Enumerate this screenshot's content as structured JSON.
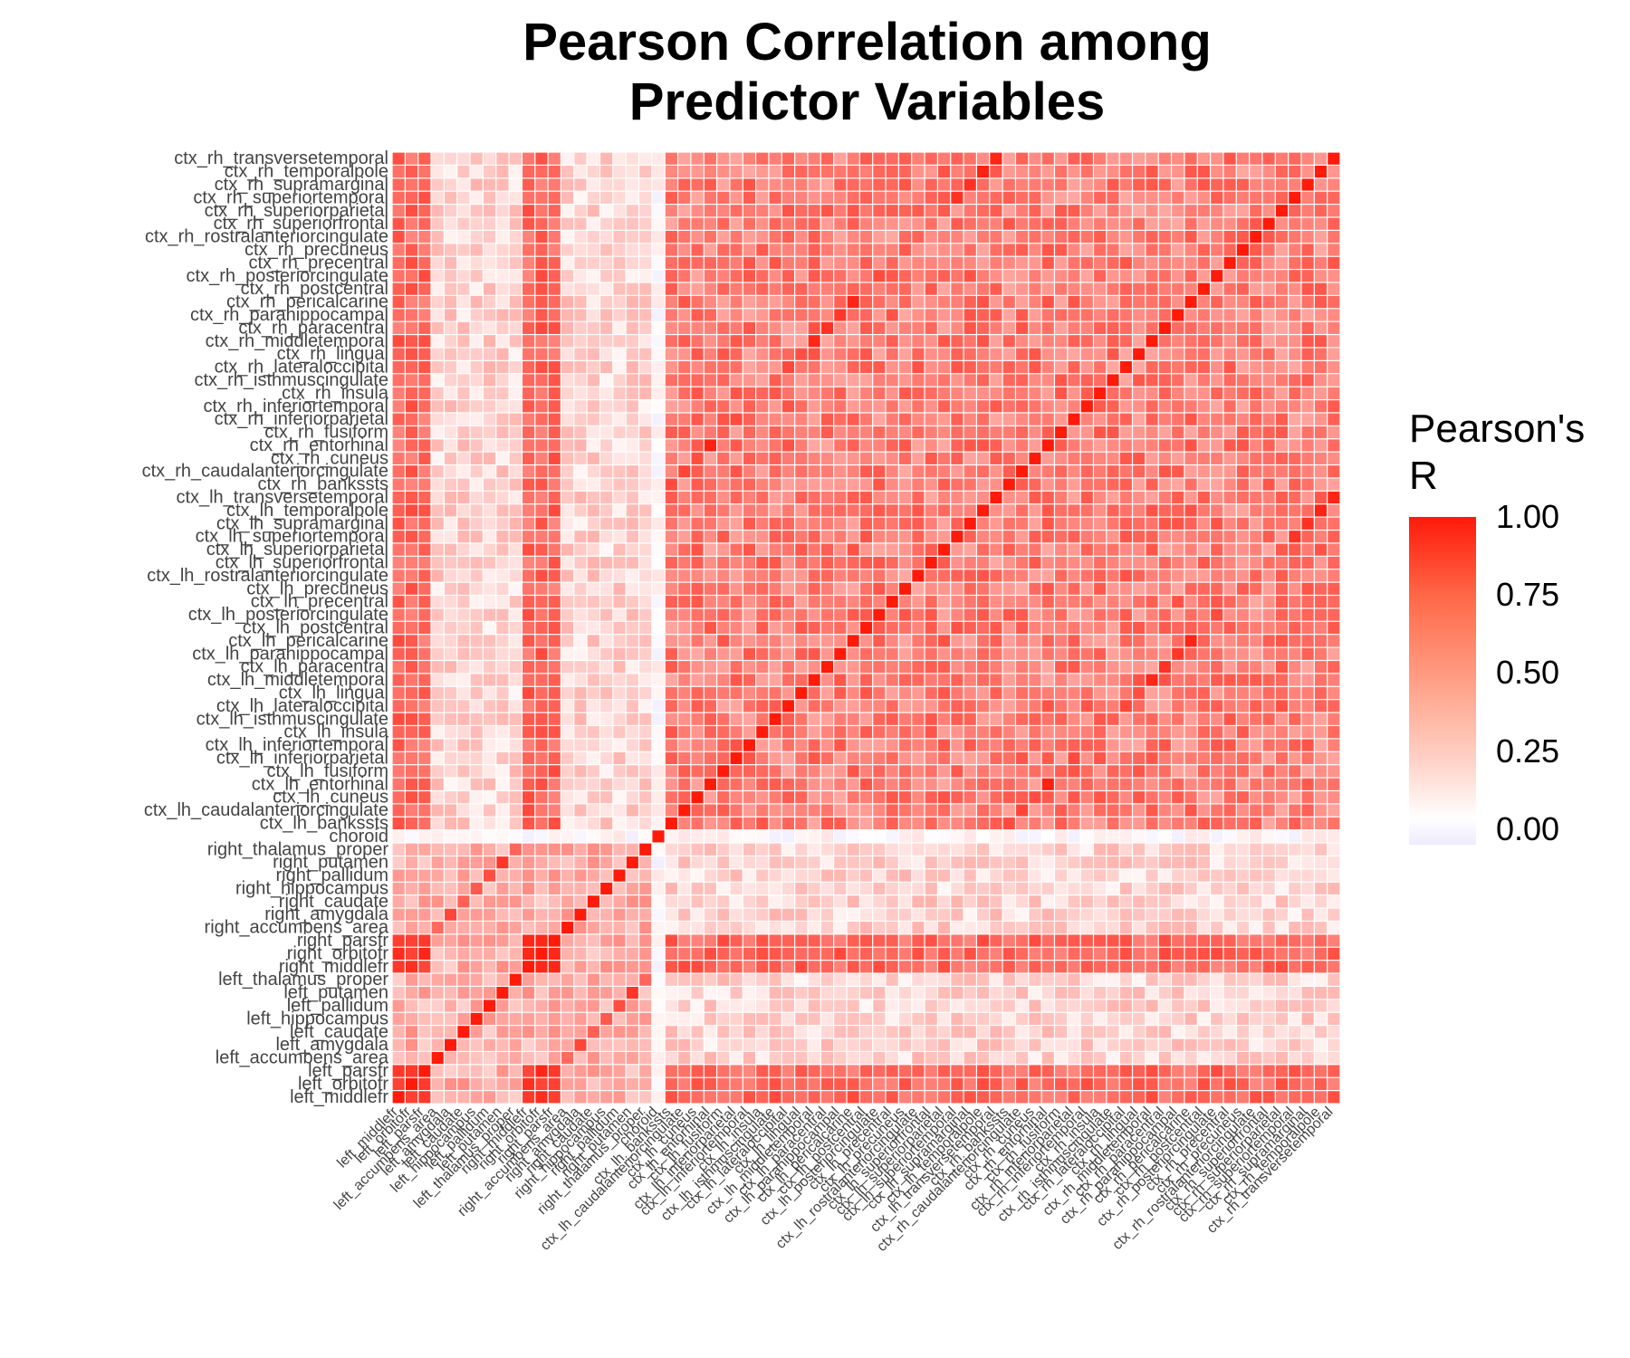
{
  "title_lines": [
    "Pearson Correlation among",
    "Predictor Variables"
  ],
  "legend": {
    "title_lines": [
      "Pearson's",
      "R"
    ],
    "ticks": [
      {
        "value": 1.0,
        "label": "1.00"
      },
      {
        "value": 0.75,
        "label": "0.75"
      },
      {
        "value": 0.5,
        "label": "0.50"
      },
      {
        "value": 0.25,
        "label": "0.25"
      },
      {
        "value": 0.0,
        "label": "0.00"
      }
    ],
    "color_high": "#ff1a0a",
    "color_zero": "#ffffff",
    "color_low": "#efeaff"
  },
  "chart_data": {
    "type": "heatmap",
    "title": "Pearson Correlation among Predictor Variables",
    "xlabel": "",
    "ylabel": "",
    "value_range": [
      -0.05,
      1.0
    ],
    "grid": false,
    "legend_position": "right",
    "variables": [
      "left_middlefr",
      "left_orbitofr",
      "left_parsfr",
      "left_accumbens_area",
      "left_amygdala",
      "left_caudate",
      "left_hippocampus",
      "left_pallidum",
      "left_putamen",
      "left_thalamus_proper",
      "right_middlefr",
      "right_orbitofr",
      "right_parsfr",
      "right_accumbens_area",
      "right_amygdala",
      "right_caudate",
      "right_hippocampus",
      "right_pallidum",
      "right_putamen",
      "right_thalamus_proper",
      "choroid",
      "ctx_lh_bankssts",
      "ctx_lh_caudalanteriorcingulate",
      "ctx_lh_cuneus",
      "ctx_lh_entorhinal",
      "ctx_lh_fusiform",
      "ctx_lh_inferiorparietal",
      "ctx_lh_inferiortemporal",
      "ctx_lh_insula",
      "ctx_lh_isthmuscingulate",
      "ctx_lh_lateraloccipital",
      "ctx_lh_lingual",
      "ctx_lh_middletemporal",
      "ctx_lh_paracentral",
      "ctx_lh_parahippocampal",
      "ctx_lh_pericalcarine",
      "ctx_lh_postcentral",
      "ctx_lh_posteriorcingulate",
      "ctx_lh_precentral",
      "ctx_lh_precuneus",
      "ctx_lh_rostralanteriorcingulate",
      "ctx_lh_superiorfrontal",
      "ctx_lh_superiorparietal",
      "ctx_lh_superiortemporal",
      "ctx_lh_supramarginal",
      "ctx_lh_temporalpole",
      "ctx_lh_transversetemporal",
      "ctx_rh_bankssts",
      "ctx_rh_caudalanteriorcingulate",
      "ctx_rh_cuneus",
      "ctx_rh_entorhinal",
      "ctx_rh_fusiform",
      "ctx_rh_inferiorparietal",
      "ctx_rh_inferiortemporal",
      "ctx_rh_insula",
      "ctx_rh_isthmuscingulate",
      "ctx_rh_lateraloccipital",
      "ctx_rh_lingual",
      "ctx_rh_middletemporal",
      "ctx_rh_paracentral",
      "ctx_rh_parahippocampal",
      "ctx_rh_pericalcarine",
      "ctx_rh_postcentral",
      "ctx_rh_posteriorcingulate",
      "ctx_rh_precentral",
      "ctx_rh_precuneus",
      "ctx_rh_rostralanteriorcingulate",
      "ctx_rh_superiorfrontal",
      "ctx_rh_superiorparietal",
      "ctx_rh_superiortemporal",
      "ctx_rh_supramarginal",
      "ctx_rh_temporalpole",
      "ctx_rh_transversetemporal"
    ],
    "group_means": {
      "frontal_vs_frontal": 0.85,
      "frontal_vs_cortex": 0.62,
      "frontal_vs_subcortical": 0.3,
      "subcortical_same_structure_bilateral": 0.75,
      "subcortical_vs_subcortical": 0.3,
      "subcortical_vs_cortex": 0.15,
      "choroid_vs_any": 0.02,
      "cortex_vs_cortex": 0.52,
      "cortex_homologous_bilateral": 0.78,
      "diagonal": 1.0
    }
  }
}
